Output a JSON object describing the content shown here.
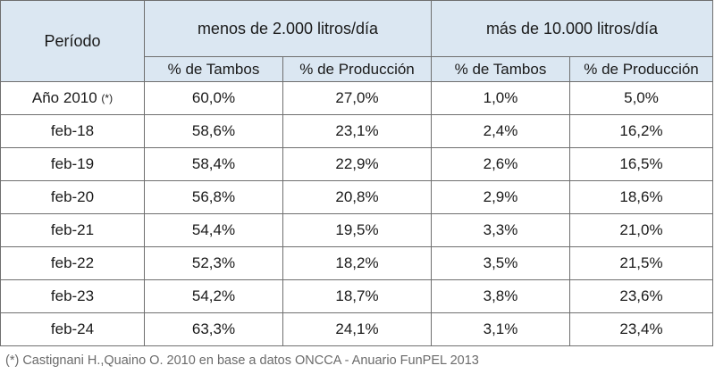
{
  "table": {
    "period_header": "Período",
    "group_headers": [
      "menos de 2.000 litros/día",
      "más de 10.000 litros/día"
    ],
    "sub_headers": [
      "% de Tambos",
      "% de Producción",
      "% de Tambos",
      "% de Producción"
    ],
    "rows": [
      {
        "period": "Año 2010",
        "mark": "(*)",
        "values": [
          "60,0%",
          "27,0%",
          "1,0%",
          "5,0%"
        ]
      },
      {
        "period": "feb-18",
        "values": [
          "58,6%",
          "23,1%",
          "2,4%",
          "16,2%"
        ]
      },
      {
        "period": "feb-19",
        "values": [
          "58,4%",
          "22,9%",
          "2,6%",
          "16,5%"
        ]
      },
      {
        "period": "feb-20",
        "values": [
          "56,8%",
          "20,8%",
          "2,9%",
          "18,6%"
        ]
      },
      {
        "period": "feb-21",
        "values": [
          "54,4%",
          "19,5%",
          "3,3%",
          "21,0%"
        ]
      },
      {
        "period": "feb-22",
        "values": [
          "52,3%",
          "18,2%",
          "3,5%",
          "21,5%"
        ]
      },
      {
        "period": "feb-23",
        "values": [
          "54,2%",
          "18,7%",
          "3,8%",
          "23,6%"
        ]
      },
      {
        "period": "feb-24",
        "values": [
          "63,3%",
          "24,1%",
          "3,1%",
          "23,4%"
        ]
      }
    ]
  },
  "footnote": "(*) Castignani H.,Quaino O. 2010 en base a datos ONCCA - Anuario FunPEL 2013",
  "colors": {
    "header_bg": "#dbe7f2",
    "border": "#6f6f6f",
    "footnote": "#6b6b6b"
  }
}
